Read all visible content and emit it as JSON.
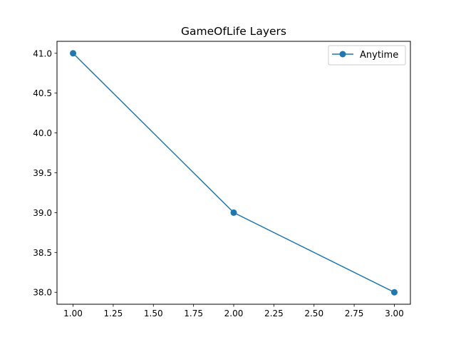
{
  "chart_data": {
    "type": "line",
    "title": "GameOfLife Layers",
    "xlabel": "",
    "ylabel": "",
    "x": [
      1.0,
      2.0,
      3.0
    ],
    "series": [
      {
        "name": "Anytime",
        "values": [
          41.0,
          39.0,
          38.0
        ],
        "color": "#1f77b4",
        "marker": "circle"
      }
    ],
    "xlim": [
      0.9,
      3.1
    ],
    "ylim": [
      37.85,
      41.15
    ],
    "xticks": [
      1.0,
      1.25,
      1.5,
      1.75,
      2.0,
      2.25,
      2.5,
      2.75,
      3.0
    ],
    "xtick_labels": [
      "1.00",
      "1.25",
      "1.50",
      "1.75",
      "2.00",
      "2.25",
      "2.50",
      "2.75",
      "3.00"
    ],
    "yticks": [
      38.0,
      38.5,
      39.0,
      39.5,
      40.0,
      40.5,
      41.0
    ],
    "ytick_labels": [
      "38.0",
      "38.5",
      "39.0",
      "39.5",
      "40.0",
      "40.5",
      "41.0"
    ],
    "grid": false,
    "legend_position": "top-right"
  }
}
